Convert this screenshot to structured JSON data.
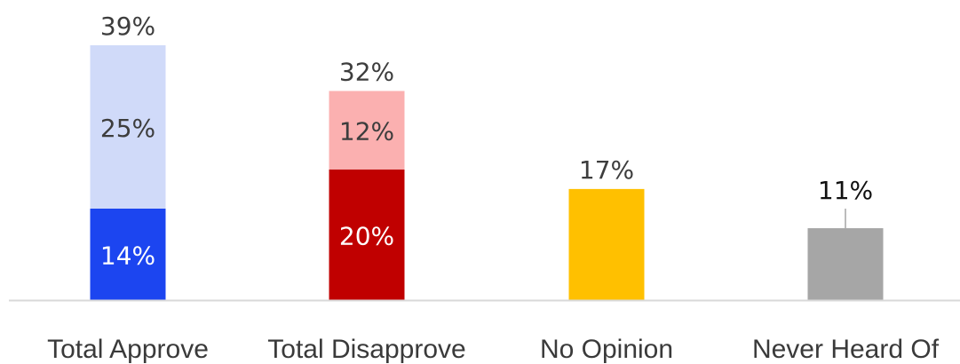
{
  "chart_data": {
    "type": "bar",
    "stacked": true,
    "categories": [
      "Total Approve",
      "Total Disapprove",
      "No Opinion",
      "Never Heard Of"
    ],
    "bars": [
      {
        "category": "Total Approve",
        "total": 39,
        "total_label": "39%",
        "segments": [
          {
            "value": 14,
            "label": "14%",
            "color": "#1c45f0",
            "text_color": "#ffffff"
          },
          {
            "value": 25,
            "label": "25%",
            "color": "#d0daf9",
            "text_color": "#3d3d3d"
          }
        ]
      },
      {
        "category": "Total Disapprove",
        "total": 32,
        "total_label": "32%",
        "segments": [
          {
            "value": 20,
            "label": "20%",
            "color": "#c00000",
            "text_color": "#ffffff"
          },
          {
            "value": 12,
            "label": "12%",
            "color": "#fbb0b0",
            "text_color": "#3d3d3d"
          }
        ]
      },
      {
        "category": "No Opinion",
        "total": 17,
        "total_label": "17%",
        "segments": [
          {
            "value": 17,
            "label": "",
            "color": "#ffc000",
            "text_color": "#3d3d3d"
          }
        ]
      },
      {
        "category": "Never Heard Of",
        "total": 11,
        "total_label": "11%",
        "segments": [
          {
            "value": 11,
            "label": "",
            "color": "#a6a6a6",
            "text_color": "#3d3d3d"
          }
        ]
      }
    ],
    "ylim": [
      0,
      39
    ],
    "grid": false,
    "legend": "none",
    "colors": {
      "approve_strong": "#1c45f0",
      "approve_soft": "#d0daf9",
      "disapprove_strong": "#c00000",
      "disapprove_soft": "#fbb0b0",
      "no_opinion": "#ffc000",
      "never_heard": "#a6a6a6",
      "baseline": "#d9d9d9",
      "label_text": "#3d3d3d"
    }
  }
}
